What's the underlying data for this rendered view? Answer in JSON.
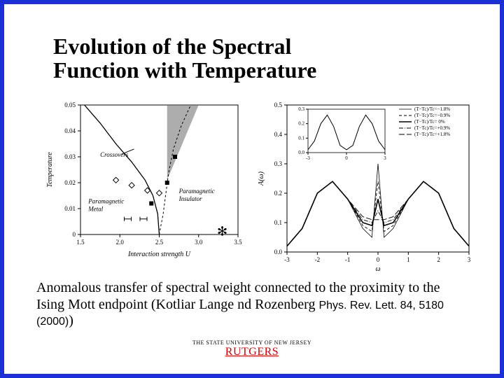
{
  "title_line1": "Evolution of the Spectral",
  "title_line2": "Function with Temperature",
  "body_text": "Anomalous transfer of spectral weight connected to the proximity to the Ising Mott endpoint (Kotliar Lange nd Rozenberg ",
  "body_ref": "Phys. Rev. Lett. 84, 5180 (2000)",
  "body_tail": ")",
  "footer_uni": "THE STATE UNIVERSITY OF NEW JERSEY",
  "footer_rutgers": "RUTGERS",
  "left_chart": {
    "type": "scatter-line",
    "xlabel": "Interaction strength U",
    "ylabel": "Temperature",
    "xlim": [
      1.5,
      3.5
    ],
    "ylim": [
      0,
      0.05
    ],
    "xticks": [
      1.5,
      2.0,
      2.5,
      3.0,
      3.5
    ],
    "yticks": [
      0,
      0.01,
      0.02,
      0.03,
      0.04,
      0.05
    ],
    "annotations": {
      "crossovers": "Crossovers",
      "metal": "Paramagnetic\nMetal",
      "insulator": "Paramagnetic\nInsulator"
    },
    "curve1": [
      [
        1.55,
        0.05
      ],
      [
        1.75,
        0.043
      ],
      [
        1.95,
        0.035
      ],
      [
        2.15,
        0.028
      ],
      [
        2.32,
        0.021
      ],
      [
        2.42,
        0.015
      ],
      [
        2.48,
        0.008
      ],
      [
        2.5,
        0.0
      ]
    ],
    "curve2_dash": [
      [
        2.5,
        0.0
      ],
      [
        2.55,
        0.008
      ],
      [
        2.58,
        0.015
      ],
      [
        2.62,
        0.024
      ],
      [
        2.68,
        0.033
      ],
      [
        2.78,
        0.042
      ],
      [
        2.9,
        0.05
      ]
    ],
    "markers_open": [
      [
        1.95,
        0.021
      ],
      [
        2.15,
        0.019
      ],
      [
        2.35,
        0.017
      ],
      [
        2.5,
        0.016
      ]
    ],
    "markers_filled": [
      [
        2.4,
        0.012
      ],
      [
        2.6,
        0.02
      ],
      [
        2.7,
        0.03
      ]
    ],
    "marker_h": [
      [
        2.1,
        0.006
      ],
      [
        2.3,
        0.006
      ]
    ],
    "star": [
      3.3,
      0.001
    ],
    "shade_poly": [
      [
        2.6,
        0.05
      ],
      [
        3.0,
        0.05
      ],
      [
        2.6,
        0.021
      ]
    ],
    "colors": {
      "line": "#000000",
      "dash": "#000000",
      "shade": "#777777",
      "bg": "#ffffff"
    }
  },
  "right_chart": {
    "type": "line",
    "xlabel": "ω",
    "ylabel": "A(ω)",
    "xlim": [
      -3,
      3
    ],
    "ylim": [
      0,
      0.5
    ],
    "xticks": [
      -3,
      -2,
      -1,
      0,
      1,
      2,
      3
    ],
    "yticks": [
      0.0,
      0.1,
      0.2,
      0.3,
      0.4,
      0.5
    ],
    "legend": [
      "(T−Tc)/Tc=−1.8%",
      "(T−Tc)/Tc=−0.9%",
      "(T−Tc)/Tc= 0%",
      "(T−Tc)/Tc=+0.9%",
      "(T−Tc)/Tc=+1.8%"
    ],
    "legend_styles": [
      "solid-thin",
      "dash",
      "solid-thick",
      "dashdot",
      "dash-long"
    ],
    "series": [
      {
        "style": "solid-thin",
        "pts": [
          [
            -3,
            0.02
          ],
          [
            -2.5,
            0.08
          ],
          [
            -2,
            0.2
          ],
          [
            -1.5,
            0.24
          ],
          [
            -1,
            0.18
          ],
          [
            -0.5,
            0.08
          ],
          [
            -0.2,
            0.05
          ],
          [
            0,
            0.3
          ],
          [
            0.2,
            0.05
          ],
          [
            0.5,
            0.08
          ],
          [
            1,
            0.18
          ],
          [
            1.5,
            0.24
          ],
          [
            2,
            0.2
          ],
          [
            2.5,
            0.08
          ],
          [
            3,
            0.02
          ]
        ]
      },
      {
        "style": "dash",
        "pts": [
          [
            -3,
            0.02
          ],
          [
            -2.5,
            0.08
          ],
          [
            -2,
            0.2
          ],
          [
            -1.5,
            0.24
          ],
          [
            -1,
            0.18
          ],
          [
            -0.5,
            0.09
          ],
          [
            -0.2,
            0.07
          ],
          [
            0,
            0.24
          ],
          [
            0.2,
            0.07
          ],
          [
            0.5,
            0.09
          ],
          [
            1,
            0.18
          ],
          [
            1.5,
            0.24
          ],
          [
            2,
            0.2
          ],
          [
            2.5,
            0.08
          ],
          [
            3,
            0.02
          ]
        ]
      },
      {
        "style": "solid-thick",
        "pts": [
          [
            -3,
            0.02
          ],
          [
            -2.5,
            0.08
          ],
          [
            -2,
            0.2
          ],
          [
            -1.5,
            0.24
          ],
          [
            -1,
            0.18
          ],
          [
            -0.5,
            0.1
          ],
          [
            -0.2,
            0.09
          ],
          [
            0,
            0.18
          ],
          [
            0.2,
            0.09
          ],
          [
            0.5,
            0.1
          ],
          [
            1,
            0.18
          ],
          [
            1.5,
            0.24
          ],
          [
            2,
            0.2
          ],
          [
            2.5,
            0.08
          ],
          [
            3,
            0.02
          ]
        ]
      },
      {
        "style": "dashdot",
        "pts": [
          [
            -3,
            0.02
          ],
          [
            -2.5,
            0.08
          ],
          [
            -2,
            0.2
          ],
          [
            -1.5,
            0.24
          ],
          [
            -1,
            0.18
          ],
          [
            -0.5,
            0.11
          ],
          [
            -0.2,
            0.1
          ],
          [
            0,
            0.14
          ],
          [
            0.2,
            0.1
          ],
          [
            0.5,
            0.11
          ],
          [
            1,
            0.18
          ],
          [
            1.5,
            0.24
          ],
          [
            2,
            0.2
          ],
          [
            2.5,
            0.08
          ],
          [
            3,
            0.02
          ]
        ]
      },
      {
        "style": "dash-long",
        "pts": [
          [
            -3,
            0.02
          ],
          [
            -2.5,
            0.08
          ],
          [
            -2,
            0.2
          ],
          [
            -1.5,
            0.24
          ],
          [
            -1,
            0.18
          ],
          [
            -0.5,
            0.12
          ],
          [
            -0.2,
            0.11
          ],
          [
            0,
            0.11
          ],
          [
            0.2,
            0.11
          ],
          [
            0.5,
            0.12
          ],
          [
            1,
            0.18
          ],
          [
            1.5,
            0.24
          ],
          [
            2,
            0.2
          ],
          [
            2.5,
            0.08
          ],
          [
            3,
            0.02
          ]
        ]
      }
    ],
    "inset": {
      "xlim": [
        -3,
        3
      ],
      "ylim": [
        0,
        0.3
      ],
      "xticks": [
        -3,
        0,
        3
      ],
      "yticks": [
        0,
        0.1,
        0.2,
        0.3
      ],
      "pts": [
        [
          -3,
          0.02
        ],
        [
          -2.5,
          0.08
        ],
        [
          -2,
          0.2
        ],
        [
          -1.5,
          0.26
        ],
        [
          -1,
          0.18
        ],
        [
          -0.5,
          0.05
        ],
        [
          0,
          0.02
        ],
        [
          0.5,
          0.05
        ],
        [
          1,
          0.18
        ],
        [
          1.5,
          0.26
        ],
        [
          2,
          0.2
        ],
        [
          2.5,
          0.08
        ],
        [
          3,
          0.02
        ]
      ]
    },
    "colors": {
      "line": "#000000",
      "bg": "#ffffff",
      "border": "#000000"
    }
  }
}
